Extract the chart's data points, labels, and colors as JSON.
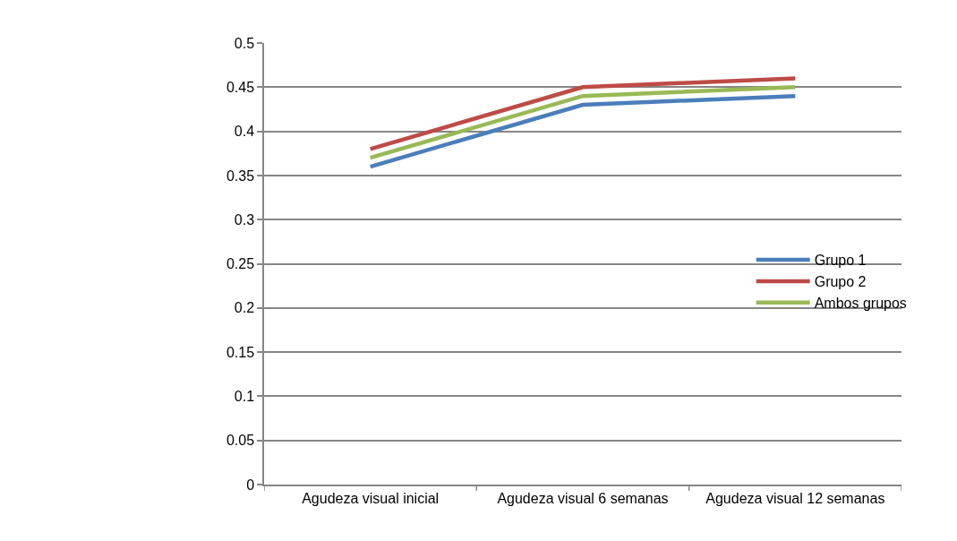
{
  "chart_data": {
    "type": "line",
    "categories": [
      "Agudeza visual inicial",
      "Agudeza visual 6 semanas",
      "Agudeza visual 12 semanas"
    ],
    "series": [
      {
        "name": "Grupo 1",
        "color": "#4a7ebb",
        "values": [
          0.36,
          0.43,
          0.44
        ]
      },
      {
        "name": "Grupo 2",
        "color": "#be4b48",
        "values": [
          0.38,
          0.45,
          0.46
        ]
      },
      {
        "name": "Ambos grupos",
        "color": "#98b954",
        "values": [
          0.37,
          0.44,
          0.45
        ]
      }
    ],
    "ylim": [
      0,
      0.5
    ],
    "yticks": [
      0,
      0.05,
      0.1,
      0.15,
      0.2,
      0.25,
      0.3,
      0.35,
      0.4,
      0.45,
      0.5
    ],
    "grid": "y",
    "legend": "right",
    "marker": "none",
    "line_style": "solid"
  }
}
